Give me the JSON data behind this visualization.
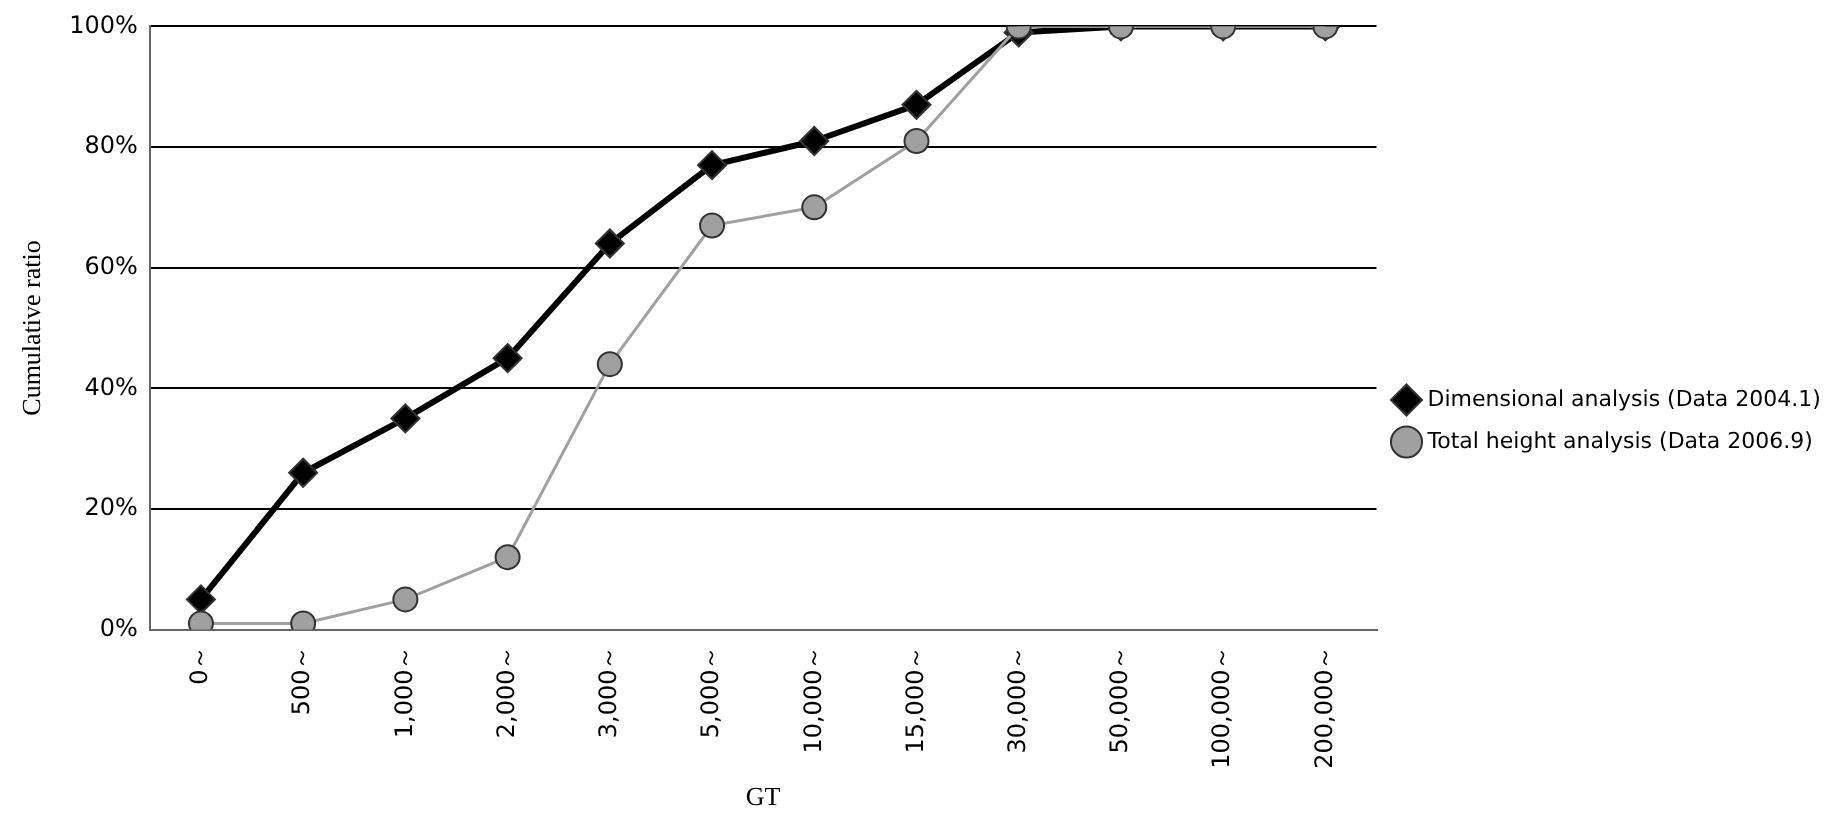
{
  "chart_data": {
    "type": "line",
    "xlabel": "GT",
    "ylabel": "Cumulative ratio",
    "categories": [
      "0～",
      "500～",
      "1,000～",
      "2,000～",
      "3,000～",
      "5,000～",
      "10,000～",
      "15,000～",
      "30,000～",
      "50,000～",
      "100,000～",
      "200,000～"
    ],
    "series": [
      {
        "name": "Dimensional analysis (Data 2004.1)",
        "color": "#000000",
        "marker": "diamond",
        "values": [
          5,
          26,
          35,
          45,
          64,
          77,
          81,
          87,
          99,
          100,
          100,
          100
        ]
      },
      {
        "name": "Total height analysis (Data 2006.9)",
        "color": "#a0a0a0",
        "marker": "circle",
        "values": [
          1,
          1,
          5,
          12,
          44,
          67,
          70,
          81,
          100,
          100,
          100,
          100
        ]
      }
    ],
    "ylim": [
      0,
      100
    ],
    "yticks": [
      {
        "value": 0,
        "label": "0%"
      },
      {
        "value": 20,
        "label": "20%"
      },
      {
        "value": 40,
        "label": "40%"
      },
      {
        "value": 60,
        "label": "60%"
      },
      {
        "value": 80,
        "label": "80%"
      },
      {
        "value": 100,
        "label": "100%"
      }
    ],
    "grid": "y",
    "legend": "right"
  }
}
